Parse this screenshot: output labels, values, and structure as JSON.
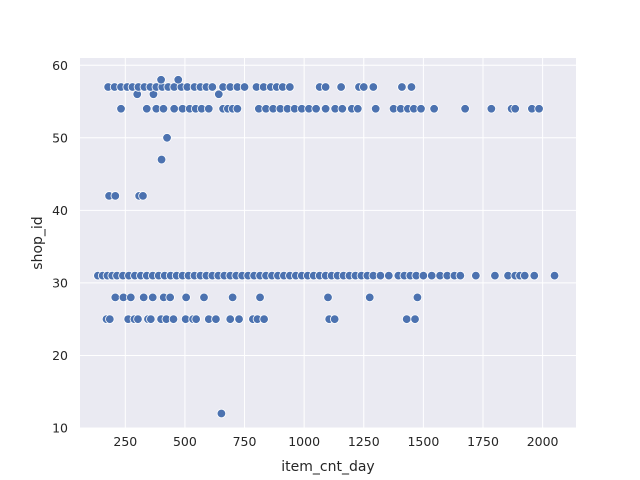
{
  "chart_data": {
    "type": "scatter",
    "xlabel": "item_cnt_day",
    "ylabel": "shop_id",
    "xlim": [
      60,
      2140
    ],
    "ylim": [
      10,
      61
    ],
    "x_ticks": [
      250,
      500,
      750,
      1000,
      1250,
      1500,
      1750,
      2000
    ],
    "y_ticks": [
      10,
      20,
      30,
      40,
      50,
      60
    ],
    "grid": true,
    "style": {
      "background": "#eaeaf2",
      "grid_color": "#ffffff",
      "point_color": "#4c72b0",
      "point_edge": "#ffffff"
    },
    "points": [
      {
        "x": 653,
        "y": 12
      },
      {
        "x": 171,
        "y": 25
      },
      {
        "x": 185,
        "y": 25
      },
      {
        "x": 262,
        "y": 25
      },
      {
        "x": 288,
        "y": 25
      },
      {
        "x": 303,
        "y": 25
      },
      {
        "x": 345,
        "y": 25
      },
      {
        "x": 357,
        "y": 25
      },
      {
        "x": 400,
        "y": 25
      },
      {
        "x": 422,
        "y": 25
      },
      {
        "x": 452,
        "y": 25
      },
      {
        "x": 503,
        "y": 25
      },
      {
        "x": 534,
        "y": 25
      },
      {
        "x": 547,
        "y": 25
      },
      {
        "x": 600,
        "y": 25
      },
      {
        "x": 630,
        "y": 25
      },
      {
        "x": 690,
        "y": 25
      },
      {
        "x": 727,
        "y": 25
      },
      {
        "x": 785,
        "y": 25
      },
      {
        "x": 804,
        "y": 25
      },
      {
        "x": 832,
        "y": 25
      },
      {
        "x": 1105,
        "y": 25
      },
      {
        "x": 1128,
        "y": 25
      },
      {
        "x": 1430,
        "y": 25
      },
      {
        "x": 1465,
        "y": 25
      },
      {
        "x": 208,
        "y": 28
      },
      {
        "x": 242,
        "y": 28
      },
      {
        "x": 273,
        "y": 28
      },
      {
        "x": 327,
        "y": 28
      },
      {
        "x": 365,
        "y": 28
      },
      {
        "x": 411,
        "y": 28
      },
      {
        "x": 438,
        "y": 28
      },
      {
        "x": 505,
        "y": 28
      },
      {
        "x": 580,
        "y": 28
      },
      {
        "x": 700,
        "y": 28
      },
      {
        "x": 815,
        "y": 28
      },
      {
        "x": 1100,
        "y": 28
      },
      {
        "x": 1275,
        "y": 28
      },
      {
        "x": 1475,
        "y": 28
      },
      {
        "x": 135,
        "y": 31
      },
      {
        "x": 155,
        "y": 31
      },
      {
        "x": 175,
        "y": 31
      },
      {
        "x": 195,
        "y": 31
      },
      {
        "x": 215,
        "y": 31
      },
      {
        "x": 240,
        "y": 31
      },
      {
        "x": 265,
        "y": 31
      },
      {
        "x": 290,
        "y": 31
      },
      {
        "x": 315,
        "y": 31
      },
      {
        "x": 340,
        "y": 31
      },
      {
        "x": 365,
        "y": 31
      },
      {
        "x": 390,
        "y": 31
      },
      {
        "x": 415,
        "y": 31
      },
      {
        "x": 440,
        "y": 31
      },
      {
        "x": 465,
        "y": 31
      },
      {
        "x": 490,
        "y": 31
      },
      {
        "x": 515,
        "y": 31
      },
      {
        "x": 540,
        "y": 31
      },
      {
        "x": 565,
        "y": 31
      },
      {
        "x": 590,
        "y": 31
      },
      {
        "x": 615,
        "y": 31
      },
      {
        "x": 640,
        "y": 31
      },
      {
        "x": 665,
        "y": 31
      },
      {
        "x": 690,
        "y": 31
      },
      {
        "x": 715,
        "y": 31
      },
      {
        "x": 740,
        "y": 31
      },
      {
        "x": 765,
        "y": 31
      },
      {
        "x": 790,
        "y": 31
      },
      {
        "x": 815,
        "y": 31
      },
      {
        "x": 840,
        "y": 31
      },
      {
        "x": 865,
        "y": 31
      },
      {
        "x": 890,
        "y": 31
      },
      {
        "x": 915,
        "y": 31
      },
      {
        "x": 940,
        "y": 31
      },
      {
        "x": 965,
        "y": 31
      },
      {
        "x": 990,
        "y": 31
      },
      {
        "x": 1015,
        "y": 31
      },
      {
        "x": 1040,
        "y": 31
      },
      {
        "x": 1065,
        "y": 31
      },
      {
        "x": 1090,
        "y": 31
      },
      {
        "x": 1115,
        "y": 31
      },
      {
        "x": 1140,
        "y": 31
      },
      {
        "x": 1165,
        "y": 31
      },
      {
        "x": 1190,
        "y": 31
      },
      {
        "x": 1215,
        "y": 31
      },
      {
        "x": 1240,
        "y": 31
      },
      {
        "x": 1265,
        "y": 31
      },
      {
        "x": 1290,
        "y": 31
      },
      {
        "x": 1320,
        "y": 31
      },
      {
        "x": 1355,
        "y": 31
      },
      {
        "x": 1395,
        "y": 31
      },
      {
        "x": 1420,
        "y": 31
      },
      {
        "x": 1445,
        "y": 31
      },
      {
        "x": 1470,
        "y": 31
      },
      {
        "x": 1500,
        "y": 31
      },
      {
        "x": 1535,
        "y": 31
      },
      {
        "x": 1570,
        "y": 31
      },
      {
        "x": 1600,
        "y": 31
      },
      {
        "x": 1630,
        "y": 31
      },
      {
        "x": 1655,
        "y": 31
      },
      {
        "x": 1720,
        "y": 31
      },
      {
        "x": 1800,
        "y": 31
      },
      {
        "x": 1855,
        "y": 31
      },
      {
        "x": 1885,
        "y": 31
      },
      {
        "x": 1905,
        "y": 31
      },
      {
        "x": 1925,
        "y": 31
      },
      {
        "x": 1965,
        "y": 31
      },
      {
        "x": 2050,
        "y": 31
      },
      {
        "x": 182,
        "y": 42
      },
      {
        "x": 208,
        "y": 42
      },
      {
        "x": 308,
        "y": 42
      },
      {
        "x": 324,
        "y": 42
      },
      {
        "x": 402,
        "y": 47
      },
      {
        "x": 425,
        "y": 50
      },
      {
        "x": 232,
        "y": 54
      },
      {
        "x": 340,
        "y": 54
      },
      {
        "x": 380,
        "y": 54
      },
      {
        "x": 410,
        "y": 54
      },
      {
        "x": 455,
        "y": 54
      },
      {
        "x": 490,
        "y": 54
      },
      {
        "x": 520,
        "y": 54
      },
      {
        "x": 545,
        "y": 54
      },
      {
        "x": 570,
        "y": 54
      },
      {
        "x": 600,
        "y": 54
      },
      {
        "x": 660,
        "y": 54
      },
      {
        "x": 680,
        "y": 54
      },
      {
        "x": 700,
        "y": 54
      },
      {
        "x": 720,
        "y": 54
      },
      {
        "x": 810,
        "y": 54
      },
      {
        "x": 840,
        "y": 54
      },
      {
        "x": 870,
        "y": 54
      },
      {
        "x": 900,
        "y": 54
      },
      {
        "x": 930,
        "y": 54
      },
      {
        "x": 960,
        "y": 54
      },
      {
        "x": 990,
        "y": 54
      },
      {
        "x": 1020,
        "y": 54
      },
      {
        "x": 1050,
        "y": 54
      },
      {
        "x": 1090,
        "y": 54
      },
      {
        "x": 1130,
        "y": 54
      },
      {
        "x": 1160,
        "y": 54
      },
      {
        "x": 1200,
        "y": 54
      },
      {
        "x": 1225,
        "y": 54
      },
      {
        "x": 1300,
        "y": 54
      },
      {
        "x": 1375,
        "y": 54
      },
      {
        "x": 1405,
        "y": 54
      },
      {
        "x": 1435,
        "y": 54
      },
      {
        "x": 1460,
        "y": 54
      },
      {
        "x": 1490,
        "y": 54
      },
      {
        "x": 1545,
        "y": 54
      },
      {
        "x": 1675,
        "y": 54
      },
      {
        "x": 1785,
        "y": 54
      },
      {
        "x": 1870,
        "y": 54
      },
      {
        "x": 1885,
        "y": 54
      },
      {
        "x": 1955,
        "y": 54
      },
      {
        "x": 1985,
        "y": 54
      },
      {
        "x": 300,
        "y": 56
      },
      {
        "x": 368,
        "y": 56
      },
      {
        "x": 642,
        "y": 56
      },
      {
        "x": 178,
        "y": 57
      },
      {
        "x": 205,
        "y": 57
      },
      {
        "x": 232,
        "y": 57
      },
      {
        "x": 258,
        "y": 57
      },
      {
        "x": 280,
        "y": 57
      },
      {
        "x": 305,
        "y": 57
      },
      {
        "x": 330,
        "y": 57
      },
      {
        "x": 355,
        "y": 57
      },
      {
        "x": 380,
        "y": 57
      },
      {
        "x": 405,
        "y": 57
      },
      {
        "x": 430,
        "y": 57
      },
      {
        "x": 455,
        "y": 57
      },
      {
        "x": 485,
        "y": 57
      },
      {
        "x": 510,
        "y": 57
      },
      {
        "x": 540,
        "y": 57
      },
      {
        "x": 565,
        "y": 57
      },
      {
        "x": 590,
        "y": 57
      },
      {
        "x": 615,
        "y": 57
      },
      {
        "x": 660,
        "y": 57
      },
      {
        "x": 690,
        "y": 57
      },
      {
        "x": 720,
        "y": 57
      },
      {
        "x": 750,
        "y": 57
      },
      {
        "x": 800,
        "y": 57
      },
      {
        "x": 830,
        "y": 57
      },
      {
        "x": 860,
        "y": 57
      },
      {
        "x": 885,
        "y": 57
      },
      {
        "x": 910,
        "y": 57
      },
      {
        "x": 940,
        "y": 57
      },
      {
        "x": 1065,
        "y": 57
      },
      {
        "x": 1090,
        "y": 57
      },
      {
        "x": 1155,
        "y": 57
      },
      {
        "x": 1230,
        "y": 57
      },
      {
        "x": 1250,
        "y": 57
      },
      {
        "x": 1290,
        "y": 57
      },
      {
        "x": 1410,
        "y": 57
      },
      {
        "x": 1450,
        "y": 57
      },
      {
        "x": 400,
        "y": 58
      },
      {
        "x": 472,
        "y": 58
      }
    ]
  }
}
